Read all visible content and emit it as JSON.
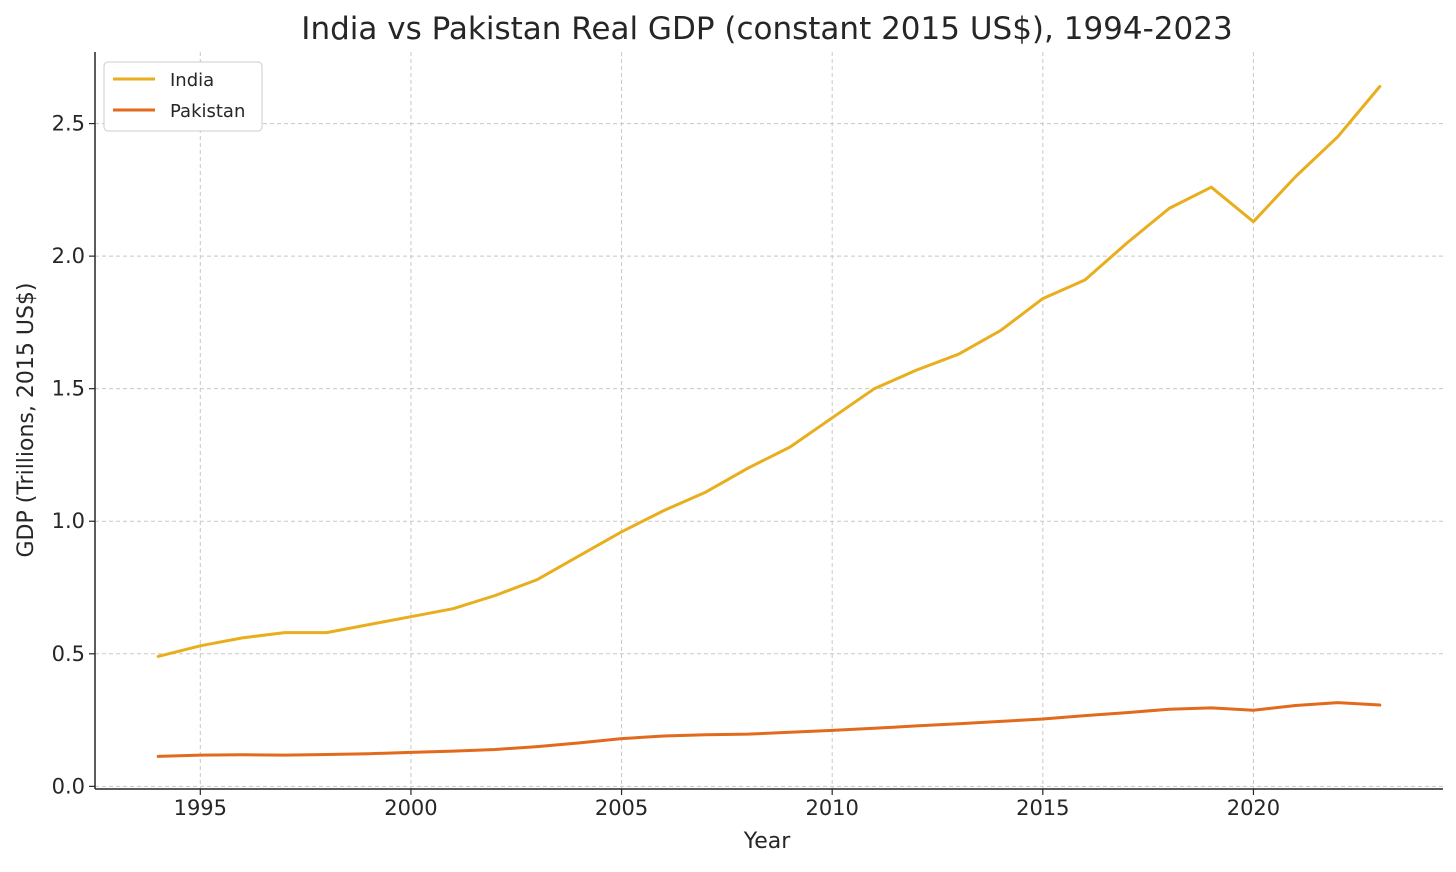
{
  "chart_data": {
    "type": "line",
    "title": "India vs Pakistan Real GDP (constant 2015 US$), 1994-2023",
    "xlabel": "Year",
    "ylabel": "GDP (Trillions, 2015 US$)",
    "x": [
      1994,
      1995,
      1996,
      1997,
      1998,
      1999,
      2000,
      2001,
      2002,
      2003,
      2004,
      2005,
      2006,
      2007,
      2008,
      2009,
      2010,
      2011,
      2012,
      2013,
      2014,
      2015,
      2016,
      2017,
      2018,
      2019,
      2020,
      2021,
      2022,
      2023
    ],
    "xlim": [
      1992.5,
      2024.5
    ],
    "ylim": [
      -0.01,
      2.77
    ],
    "xticks": [
      1995,
      2000,
      2005,
      2010,
      2015,
      2020
    ],
    "yticks": [
      0.0,
      0.5,
      1.0,
      1.5,
      2.0,
      2.5
    ],
    "xtick_labels": [
      "1995",
      "2000",
      "2005",
      "2010",
      "2015",
      "2020"
    ],
    "ytick_labels": [
      "0.0",
      "0.5",
      "1.0",
      "1.5",
      "2.0",
      "2.5"
    ],
    "grid": true,
    "legend_position": "top-left",
    "series": [
      {
        "name": "India",
        "color": "#E8AE1D",
        "values": [
          0.49,
          0.53,
          0.56,
          0.58,
          0.58,
          0.61,
          0.64,
          0.67,
          0.72,
          0.78,
          0.87,
          0.96,
          1.04,
          1.11,
          1.2,
          1.28,
          1.39,
          1.5,
          1.57,
          1.63,
          1.72,
          1.84,
          1.91,
          2.05,
          2.18,
          2.26,
          2.13,
          2.3,
          2.45,
          2.64
        ]
      },
      {
        "name": "Pakistan",
        "color": "#E26A1C",
        "values": [
          0.113,
          0.118,
          0.119,
          0.118,
          0.12,
          0.123,
          0.128,
          0.133,
          0.139,
          0.15,
          0.164,
          0.18,
          0.19,
          0.195,
          0.197,
          0.204,
          0.211,
          0.219,
          0.228,
          0.236,
          0.245,
          0.254,
          0.267,
          0.278,
          0.291,
          0.296,
          0.287,
          0.305,
          0.316,
          0.307
        ]
      }
    ]
  }
}
